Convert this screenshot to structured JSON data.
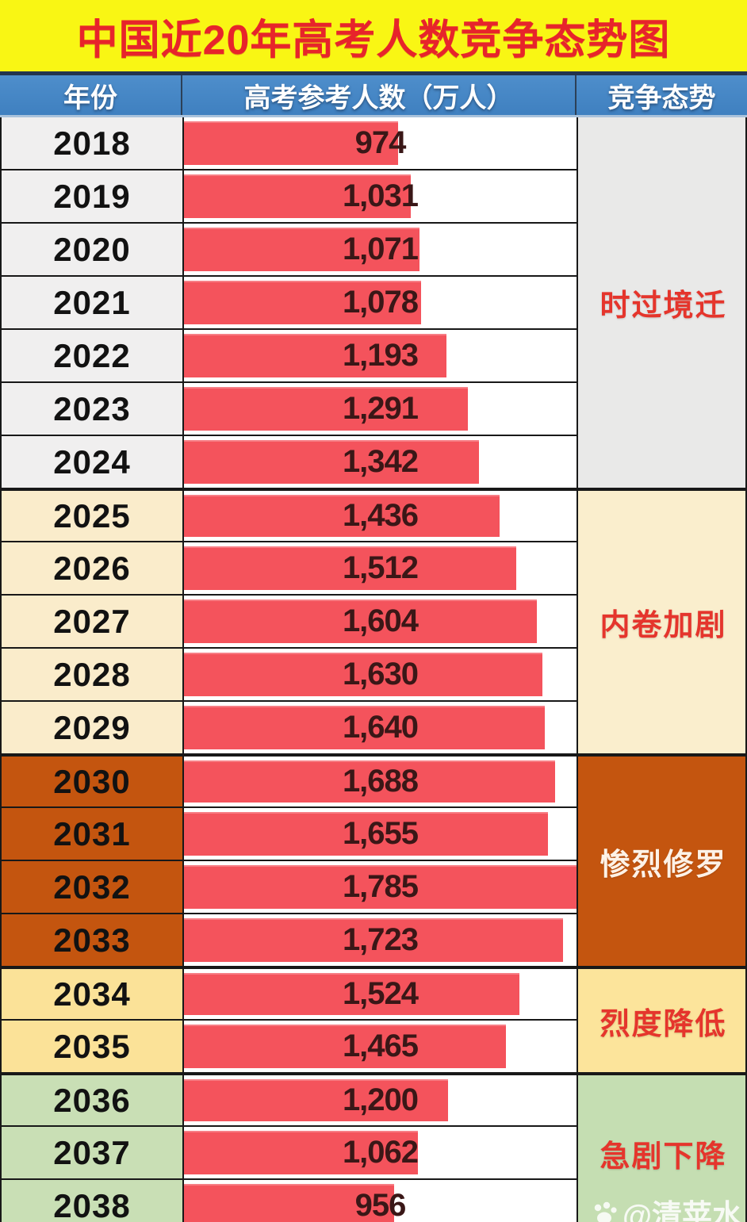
{
  "title": "中国近20年高考人数竞争态势图",
  "header": {
    "year": "年份",
    "count": "高考参考人数（万人）",
    "trend": "竞争态势"
  },
  "watermark": "@清苹水",
  "colors": {
    "page_bg": "#f9f614",
    "title_text": "#e7242b",
    "header_bg": "#4486c5",
    "header_text": "#ffffff",
    "bar": "#f4535c",
    "bar_label_text": "#3a1717",
    "year_text": "#121212",
    "border": "#181818"
  },
  "chart_data": {
    "type": "bar",
    "orientation": "horizontal",
    "title": "中国近20年高考人数竞争态势图",
    "xlabel": "高考参考人数（万人）",
    "ylabel": "年份",
    "value_axis_max": 1785,
    "grid": false,
    "legend": false,
    "categories": [
      "2018",
      "2019",
      "2020",
      "2021",
      "2022",
      "2023",
      "2024",
      "2025",
      "2026",
      "2027",
      "2028",
      "2029",
      "2030",
      "2031",
      "2032",
      "2033",
      "2034",
      "2035",
      "2036",
      "2037",
      "2038"
    ],
    "values": [
      974,
      1031,
      1071,
      1078,
      1193,
      1291,
      1342,
      1436,
      1512,
      1604,
      1630,
      1640,
      1688,
      1655,
      1785,
      1723,
      1524,
      1465,
      1200,
      1062,
      956
    ],
    "labels": [
      "974",
      "1,031",
      "1,071",
      "1,078",
      "1,193",
      "1,291",
      "1,342",
      "1,436",
      "1,512",
      "1,604",
      "1,630",
      "1,640",
      "1,688",
      "1,655",
      "1,785",
      "1,723",
      "1,524",
      "1,465",
      "1,200",
      "1,062",
      "956"
    ],
    "groups": [
      {
        "label": "时过境迁",
        "start": 0,
        "span": 7,
        "year_bg": "#f0efef",
        "status_bg": "#e9e9e8",
        "label_color": "#e5352c"
      },
      {
        "label": "内卷加剧",
        "start": 7,
        "span": 5,
        "year_bg": "#faeccb",
        "status_bg": "#faeecd",
        "label_color": "#e5352c"
      },
      {
        "label": "惨烈修罗",
        "start": 12,
        "span": 4,
        "year_bg": "#c4550f",
        "status_bg": "#c4550f",
        "label_color": "#fdf2e7"
      },
      {
        "label": "烈度降低",
        "start": 16,
        "span": 2,
        "year_bg": "#fbe298",
        "status_bg": "#fce49b",
        "label_color": "#e5352c"
      },
      {
        "label": "急剧下降",
        "start": 18,
        "span": 3,
        "year_bg": "#c9dfb5",
        "status_bg": "#c5deb2",
        "label_color": "#e5352c"
      }
    ]
  }
}
